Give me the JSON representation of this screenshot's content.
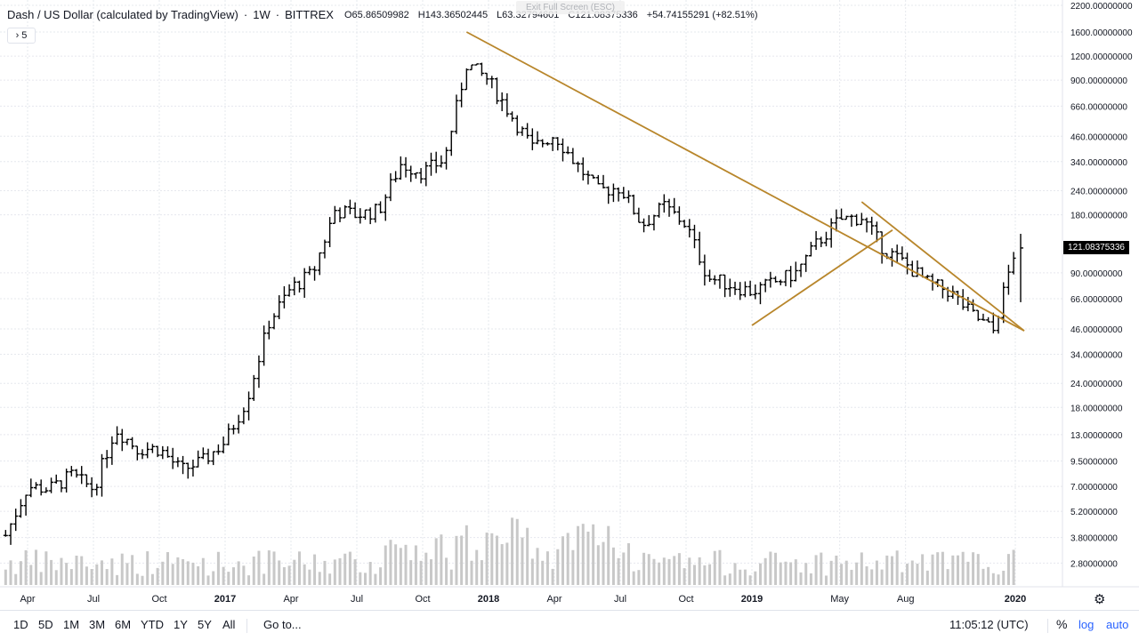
{
  "header": {
    "title": "Dash / US Dollar (calculated by TradingView)",
    "interval": "1W",
    "exchange": "BITTREX",
    "open": "O65.86509982",
    "high": "H143.36502445",
    "low": "L63.32794601",
    "close": "C121.08375336",
    "change": "+54.74155291 (+82.51%)"
  },
  "overlay": {
    "exit_fullscreen": "Exit Full Screen (ESC)",
    "indicators_collapsed": "› 5"
  },
  "price_axis": {
    "labels": [
      "2200.00000000",
      "1600.00000000",
      "1200.00000000",
      "900.00000000",
      "660.00000000",
      "460.00000000",
      "340.00000000",
      "240.00000000",
      "180.00000000",
      "121.08375336",
      "90.00000000",
      "66.00000000",
      "46.00000000",
      "34.00000000",
      "24.00000000",
      "18.00000000",
      "13.00000000",
      "9.50000000",
      "7.00000000",
      "5.20000000",
      "3.80000000",
      "2.80000000"
    ],
    "last_price": "121.08375336",
    "last_price_color": "#000000"
  },
  "time_axis": {
    "labels": [
      "Apr",
      "Jul",
      "Oct",
      "2017",
      "Apr",
      "Jul",
      "Oct",
      "2018",
      "Apr",
      "Jul",
      "Oct",
      "2019",
      "May",
      "Aug",
      "2020"
    ],
    "bold_labels": [
      "2017",
      "2018",
      "2019",
      "2020"
    ]
  },
  "toolbar": {
    "ranges": [
      "1D",
      "5D",
      "1M",
      "3M",
      "6M",
      "YTD",
      "1Y",
      "5Y",
      "All"
    ],
    "goto": "Go to...",
    "time": "11:05:12 (UTC)",
    "percent": "%",
    "log": "log",
    "auto": "auto",
    "settings_icon": "gear-icon"
  },
  "chart_data": {
    "type": "ohlc-bar",
    "symbol": "Dash / US Dollar",
    "interval": "1W",
    "log_scale": true,
    "grid": true,
    "ylim": [
      2.5,
      2200
    ],
    "colors": {
      "bars": "#000000",
      "volume": "#c8c8c8",
      "trendlines": "#b8862b"
    },
    "weekly_close_points": [
      [
        "2016-03",
        3.9
      ],
      [
        "2016-04",
        7.0
      ],
      [
        "2016-05",
        6.8
      ],
      [
        "2016-06",
        8.0
      ],
      [
        "2016-07",
        6.8
      ],
      [
        "2016-08",
        14.0
      ],
      [
        "2016-09",
        11.0
      ],
      [
        "2016-10",
        11.0
      ],
      [
        "2016-11",
        8.5
      ],
      [
        "2016-12",
        9.5
      ],
      [
        "2017-01",
        12.0
      ],
      [
        "2017-02",
        20.0
      ],
      [
        "2017-03",
        50.0
      ],
      [
        "2017-04",
        75.0
      ],
      [
        "2017-05",
        90.0
      ],
      [
        "2017-06",
        190.0
      ],
      [
        "2017-07",
        180.0
      ],
      [
        "2017-08",
        190.0
      ],
      [
        "2017-09",
        330.0
      ],
      [
        "2017-10",
        300.0
      ],
      [
        "2017-11",
        350.0
      ],
      [
        "2017-12",
        1100.0
      ],
      [
        "2018-01",
        900.0
      ],
      [
        "2018-02",
        600.0
      ],
      [
        "2018-03",
        400.0
      ],
      [
        "2018-04",
        470.0
      ],
      [
        "2018-05",
        330.0
      ],
      [
        "2018-06",
        240.0
      ],
      [
        "2018-07",
        250.0
      ],
      [
        "2018-08",
        160.0
      ],
      [
        "2018-09",
        200.0
      ],
      [
        "2018-10",
        160.0
      ],
      [
        "2018-11",
        85.0
      ],
      [
        "2019-01",
        72.0
      ],
      [
        "2019-02",
        80.0
      ],
      [
        "2019-03",
        90.0
      ],
      [
        "2019-04",
        130.0
      ],
      [
        "2019-05",
        170.0
      ],
      [
        "2019-06",
        175.0
      ],
      [
        "2019-07",
        120.0
      ],
      [
        "2019-08",
        100.0
      ],
      [
        "2019-09",
        80.0
      ],
      [
        "2019-10",
        72.0
      ],
      [
        "2019-11",
        55.0
      ],
      [
        "2019-12",
        45.0
      ],
      [
        "2020-01",
        121.08
      ]
    ],
    "trendlines": [
      {
        "from": [
          "2017-12",
          1600
        ],
        "to": [
          "2020-01",
          45
        ]
      },
      {
        "from": [
          "2019-01",
          48
        ],
        "to": [
          "2019-07",
          150
        ]
      },
      {
        "from": [
          "2019-06",
          210
        ],
        "to": [
          "2020-01",
          45
        ]
      }
    ]
  }
}
